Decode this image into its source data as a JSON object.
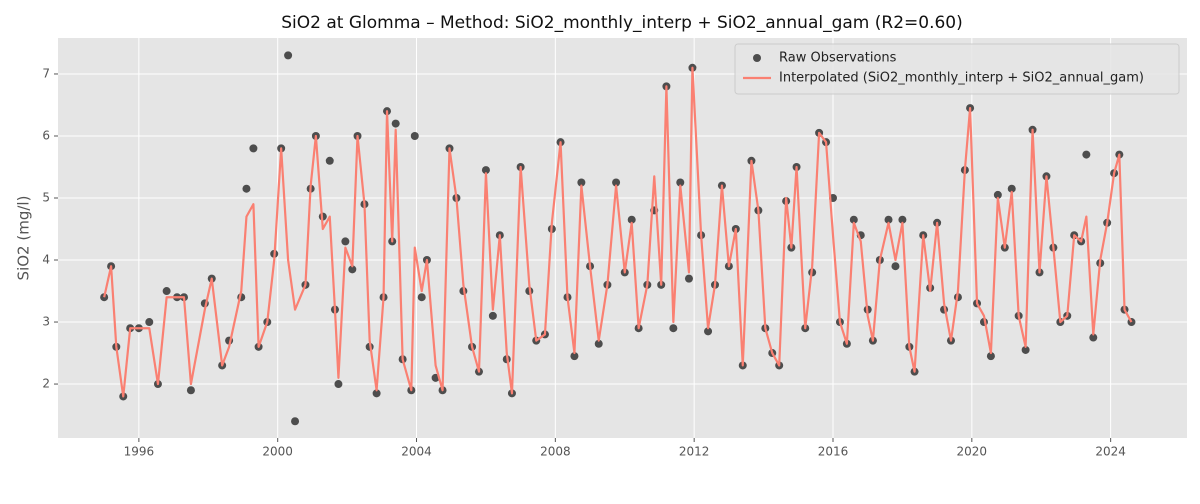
{
  "chart_data": {
    "type": "line",
    "title": "SiO2 at Glomma – Method: SiO2_monthly_interp + SiO2_annual_gam (R2=0.60)",
    "y_label": "SiO2 (mg/l)",
    "xlim": [
      1993.67,
      2026.2
    ],
    "ylim": [
      1.13,
      7.58
    ],
    "xticks": [
      1996,
      2000,
      2004,
      2008,
      2012,
      2016,
      2020,
      2024
    ],
    "yticks": [
      2,
      3,
      4,
      5,
      6,
      7
    ],
    "grid": true,
    "legend": "upper right",
    "x": [
      1995.0,
      1995.2,
      1995.35,
      1995.55,
      1995.75,
      1996.0,
      1996.3,
      1996.55,
      1996.8,
      1997.1,
      1997.3,
      1997.5,
      1997.9,
      1998.1,
      1998.4,
      1998.6,
      1998.95,
      1999.1,
      1999.3,
      1999.45,
      1999.7,
      1999.9,
      2000.1,
      2000.3,
      2000.5,
      2000.8,
      2000.95,
      2001.1,
      2001.3,
      2001.5,
      2001.65,
      2001.75,
      2001.95,
      2002.15,
      2002.3,
      2002.5,
      2002.65,
      2002.85,
      2003.05,
      2003.15,
      2003.3,
      2003.4,
      2003.6,
      2003.85,
      2003.95,
      2004.15,
      2004.3,
      2004.55,
      2004.75,
      2004.95,
      2005.15,
      2005.35,
      2005.6,
      2005.8,
      2006.0,
      2006.2,
      2006.4,
      2006.6,
      2006.75,
      2007.0,
      2007.25,
      2007.45,
      2007.7,
      2007.9,
      2008.15,
      2008.35,
      2008.55,
      2008.75,
      2009.0,
      2009.25,
      2009.5,
      2009.75,
      2010.0,
      2010.2,
      2010.4,
      2010.65,
      2010.85,
      2011.05,
      2011.2,
      2011.4,
      2011.6,
      2011.85,
      2011.95,
      2012.2,
      2012.4,
      2012.6,
      2012.8,
      2013.0,
      2013.2,
      2013.4,
      2013.65,
      2013.85,
      2014.05,
      2014.25,
      2014.45,
      2014.65,
      2014.8,
      2014.95,
      2015.2,
      2015.4,
      2015.6,
      2015.8,
      2016.0,
      2016.2,
      2016.4,
      2016.6,
      2016.8,
      2017.0,
      2017.15,
      2017.35,
      2017.6,
      2017.8,
      2018.0,
      2018.2,
      2018.35,
      2018.6,
      2018.8,
      2019.0,
      2019.2,
      2019.4,
      2019.6,
      2019.8,
      2019.95,
      2020.15,
      2020.35,
      2020.55,
      2020.75,
      2020.95,
      2021.15,
      2021.35,
      2021.55,
      2021.75,
      2021.95,
      2022.15,
      2022.35,
      2022.55,
      2022.75,
      2022.95,
      2023.15,
      2023.3,
      2023.5,
      2023.7,
      2023.9,
      2024.1,
      2024.25,
      2024.4,
      2024.6
    ],
    "series": [
      {
        "name": "Raw Observations",
        "type": "scatter",
        "color": "#333333",
        "values": [
          3.4,
          3.9,
          2.6,
          1.8,
          2.9,
          2.9,
          3.0,
          2.0,
          3.5,
          3.4,
          3.4,
          1.9,
          3.3,
          3.7,
          2.3,
          2.7,
          3.4,
          5.15,
          5.8,
          2.6,
          3.0,
          4.1,
          5.8,
          7.3,
          1.4,
          3.6,
          5.15,
          6.0,
          4.7,
          5.6,
          3.2,
          2.0,
          4.3,
          3.85,
          6.0,
          4.9,
          2.6,
          1.85,
          3.4,
          6.4,
          4.3,
          6.2,
          2.4,
          1.9,
          6.0,
          3.4,
          4.0,
          2.1,
          1.9,
          5.8,
          5.0,
          3.5,
          2.6,
          2.2,
          5.45,
          3.1,
          4.4,
          2.4,
          1.85,
          5.5,
          3.5,
          2.7,
          2.8,
          4.5,
          5.9,
          3.4,
          2.45,
          5.25,
          3.9,
          2.65,
          3.6,
          5.25,
          3.8,
          4.65,
          2.9,
          3.6,
          4.8,
          3.6,
          6.8,
          2.9,
          5.25,
          3.7,
          7.1,
          4.4,
          2.85,
          3.6,
          5.2,
          3.9,
          4.5,
          2.3,
          5.6,
          4.8,
          2.9,
          2.5,
          2.3,
          4.95,
          4.2,
          5.5,
          2.9,
          3.8,
          6.05,
          5.9,
          5.0,
          3.0,
          2.65,
          4.65,
          4.4,
          3.2,
          2.7,
          4.0,
          4.65,
          3.9,
          4.65,
          2.6,
          2.2,
          4.4,
          3.55,
          4.6,
          3.2,
          2.7,
          3.4,
          5.45,
          6.45,
          3.3,
          3.0,
          2.45,
          5.05,
          4.2,
          5.15,
          3.1,
          2.55,
          6.1,
          3.8,
          5.35,
          4.2,
          3.0,
          3.1,
          4.4,
          4.3,
          5.7,
          2.75,
          3.95,
          4.6,
          5.4,
          5.7,
          3.2,
          3.0
        ]
      },
      {
        "name": "Interpolated (SiO2_monthly_interp + SiO2_annual_gam)",
        "type": "line",
        "color": "#fa8072",
        "values": [
          3.4,
          3.9,
          2.6,
          1.8,
          2.9,
          2.9,
          2.9,
          2.0,
          3.4,
          3.4,
          3.4,
          2.0,
          3.2,
          3.7,
          2.3,
          2.6,
          3.5,
          4.7,
          4.9,
          2.6,
          3.0,
          4.0,
          5.8,
          4.0,
          3.2,
          3.6,
          5.2,
          6.0,
          4.5,
          4.7,
          3.2,
          2.1,
          4.2,
          3.9,
          6.0,
          4.9,
          2.7,
          1.9,
          3.4,
          6.4,
          4.3,
          6.1,
          2.4,
          1.9,
          4.2,
          3.5,
          4.0,
          2.3,
          1.9,
          5.8,
          5.0,
          3.6,
          2.6,
          2.2,
          5.4,
          3.2,
          4.4,
          2.5,
          1.85,
          5.5,
          3.6,
          2.7,
          2.8,
          4.6,
          5.9,
          3.4,
          2.5,
          5.2,
          3.9,
          2.7,
          3.6,
          5.2,
          3.8,
          4.6,
          2.9,
          3.6,
          5.35,
          3.6,
          6.8,
          3.0,
          5.2,
          3.8,
          7.1,
          4.4,
          2.9,
          3.6,
          5.2,
          3.9,
          4.5,
          2.3,
          5.6,
          4.8,
          2.9,
          2.5,
          2.3,
          5.0,
          4.2,
          5.5,
          2.9,
          3.9,
          6.05,
          5.9,
          4.4,
          3.0,
          2.65,
          4.6,
          4.3,
          3.1,
          2.7,
          4.0,
          4.6,
          4.0,
          4.6,
          2.6,
          2.2,
          4.4,
          3.5,
          4.6,
          3.3,
          2.7,
          3.5,
          5.45,
          6.45,
          3.3,
          3.1,
          2.5,
          5.0,
          4.2,
          5.1,
          3.1,
          2.6,
          6.1,
          3.8,
          5.35,
          4.2,
          3.0,
          3.1,
          4.4,
          4.3,
          4.7,
          2.8,
          4.0,
          4.6,
          5.4,
          5.7,
          3.2,
          3.0
        ]
      }
    ]
  }
}
